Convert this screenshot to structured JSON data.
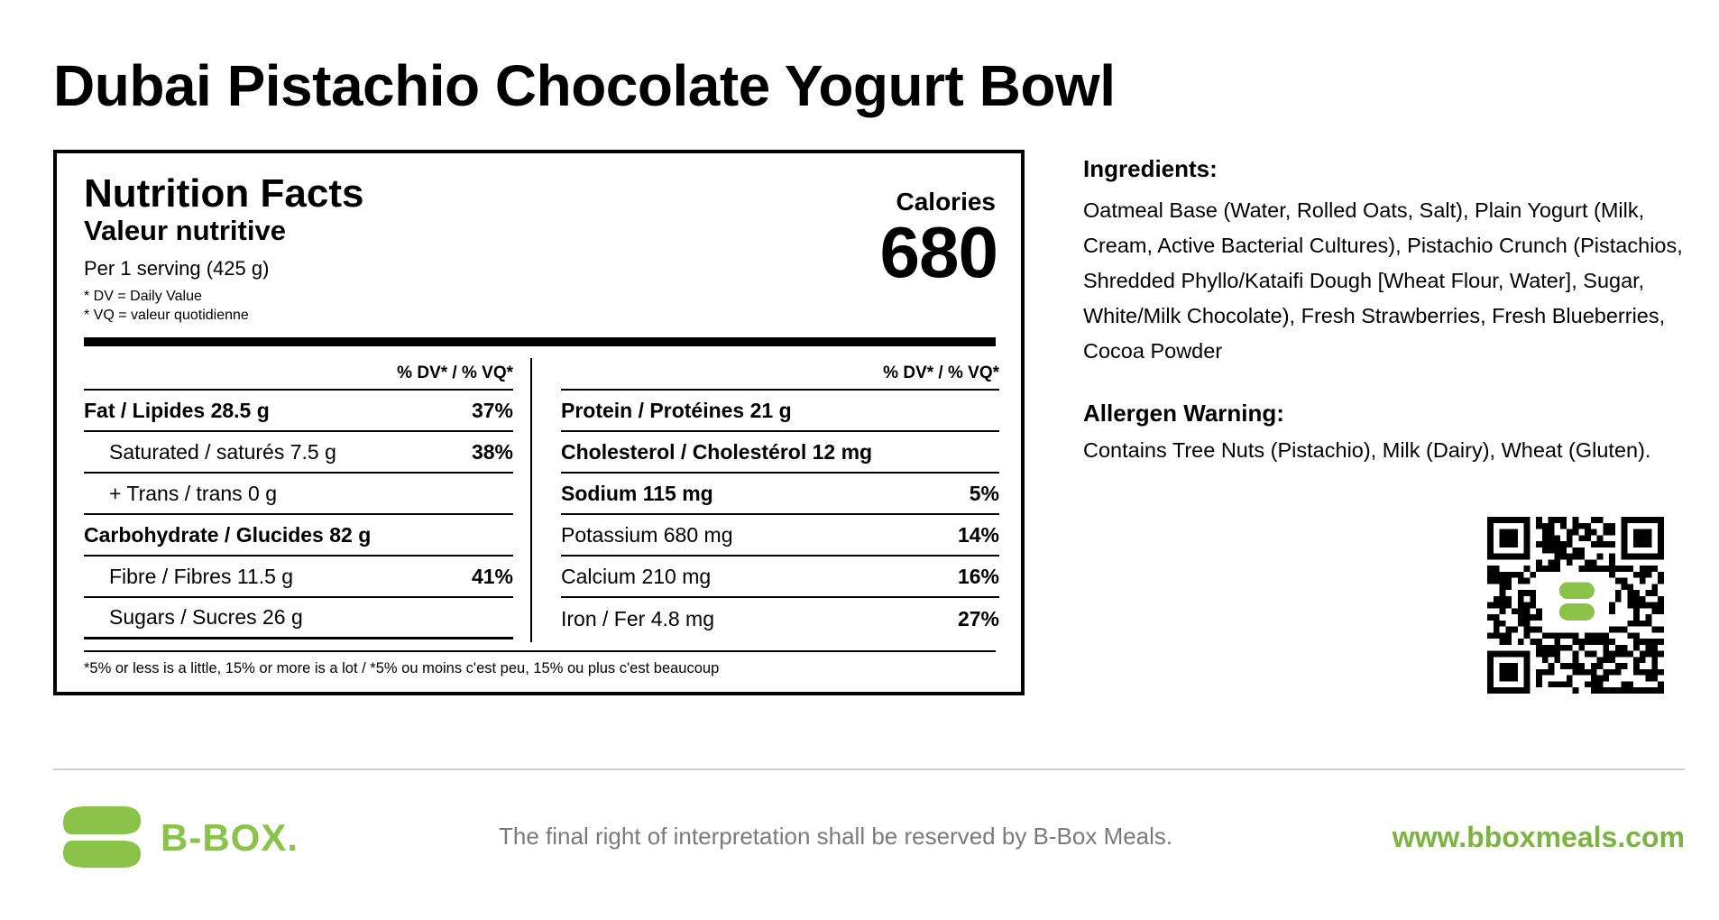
{
  "title": "Dubai Pistachio Chocolate Yogurt Bowl",
  "nutrition": {
    "heading": "Nutrition Facts",
    "subheading": "Valeur nutritive",
    "serving": "Per 1 serving (425 g)",
    "note_dv": "* DV = Daily Value",
    "note_vq": "* VQ = valeur quotidienne",
    "calories_label": "Calories",
    "calories_value": "680",
    "dv_header": "% DV* / % VQ*",
    "left_rows": [
      {
        "label": "Fat / Lipides 28.5 g",
        "pct": "37%"
      },
      {
        "label": "Saturated / saturés 7.5 g",
        "pct": "38%"
      },
      {
        "label": "+ Trans / trans 0 g",
        "pct": ""
      },
      {
        "label": "Carbohydrate / Glucides 82 g",
        "pct": ""
      },
      {
        "label": "Fibre / Fibres 11.5 g",
        "pct": "41%"
      },
      {
        "label": "Sugars / Sucres 26 g",
        "pct": ""
      }
    ],
    "right_rows": [
      {
        "label": "Protein / Protéines 21 g",
        "pct": ""
      },
      {
        "label": "Cholesterol / Cholestérol 12 mg",
        "pct": ""
      },
      {
        "label": "Sodium 115 mg",
        "pct": "5%"
      },
      {
        "label": "Potassium 680 mg",
        "pct": "14%"
      },
      {
        "label": "Calcium 210 mg",
        "pct": "16%"
      },
      {
        "label": "Iron / Fer 4.8 mg",
        "pct": "27%"
      }
    ],
    "footnote": "*5% or less is a little, 15% or more is a lot / *5% ou moins c'est peu, 15% ou plus c'est beaucoup"
  },
  "ingredients": {
    "heading": "Ingredients:",
    "text": "Oatmeal Base (Water, Rolled Oats, Salt), Plain Yogurt (Milk, Cream, Active Bacterial Cultures), Pistachio Crunch (Pistachios, Shredded Phyllo/Kataifi Dough [Wheat Flour, Water], Sugar, White/Milk Chocolate), Fresh Strawberries, Fresh Blueberries, Cocoa Powder"
  },
  "allergen": {
    "heading": "Allergen Warning:",
    "text": "Contains Tree Nuts (Pistachio), Milk (Dairy), Wheat (Gluten)."
  },
  "qr_icon": "qr-code-icon",
  "footer": {
    "brand": "B-BOX.",
    "disclaimer": "The final right of interpretation shall be reserved by B-Box Meals.",
    "website": "www.bboxmeals.com",
    "logo_icon": "b-box-logo-icon"
  },
  "colors": {
    "brand_green": "#8bc34a",
    "website_green": "#7cb342",
    "disclaimer_gray": "#7a7a7a"
  }
}
